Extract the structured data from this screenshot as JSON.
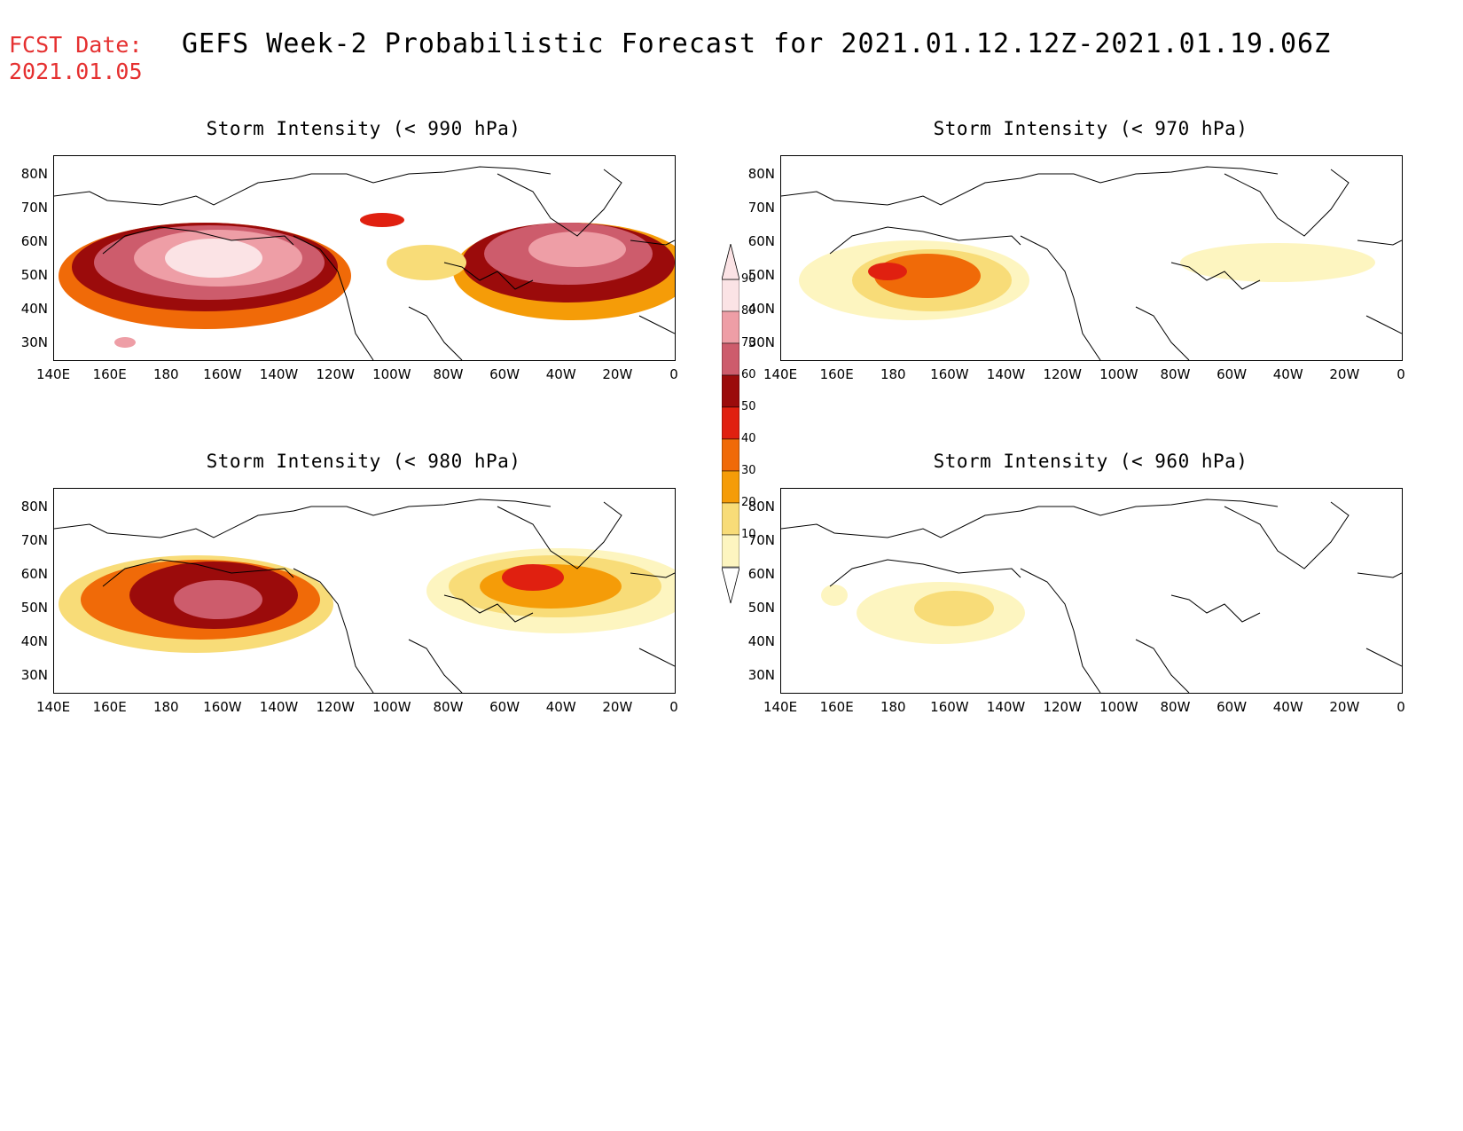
{
  "forecast_date": {
    "label": "FCST Date:",
    "value": "2021.01.05"
  },
  "title": "GEFS Week-2 Probabilistic Forecast for 2021.01.12.12Z-2021.01.19.06Z",
  "lat_ticks": [
    "80N",
    "70N",
    "60N",
    "50N",
    "40N",
    "30N"
  ],
  "lon_ticks": [
    "140E",
    "160E",
    "180",
    "160W",
    "140W",
    "120W",
    "100W",
    "80W",
    "60W",
    "40W",
    "20W",
    "0"
  ],
  "panels": [
    {
      "title": "Storm Intensity (< 990 hPa)"
    },
    {
      "title": "Storm Intensity (< 970 hPa)"
    },
    {
      "title": "Storm Intensity (< 980 hPa)"
    },
    {
      "title": "Storm Intensity (< 960 hPa)"
    }
  ],
  "colorbar": {
    "labels": [
      "90",
      "80",
      "70",
      "60",
      "50",
      "40",
      "30",
      "20",
      "10"
    ],
    "colors": [
      "#fbe3e5",
      "#ee9ea6",
      "#cd5c6c",
      "#9b0b0b",
      "#e02010",
      "#f06a08",
      "#f59c08",
      "#f8dc78",
      "#fdf5c0"
    ]
  }
}
